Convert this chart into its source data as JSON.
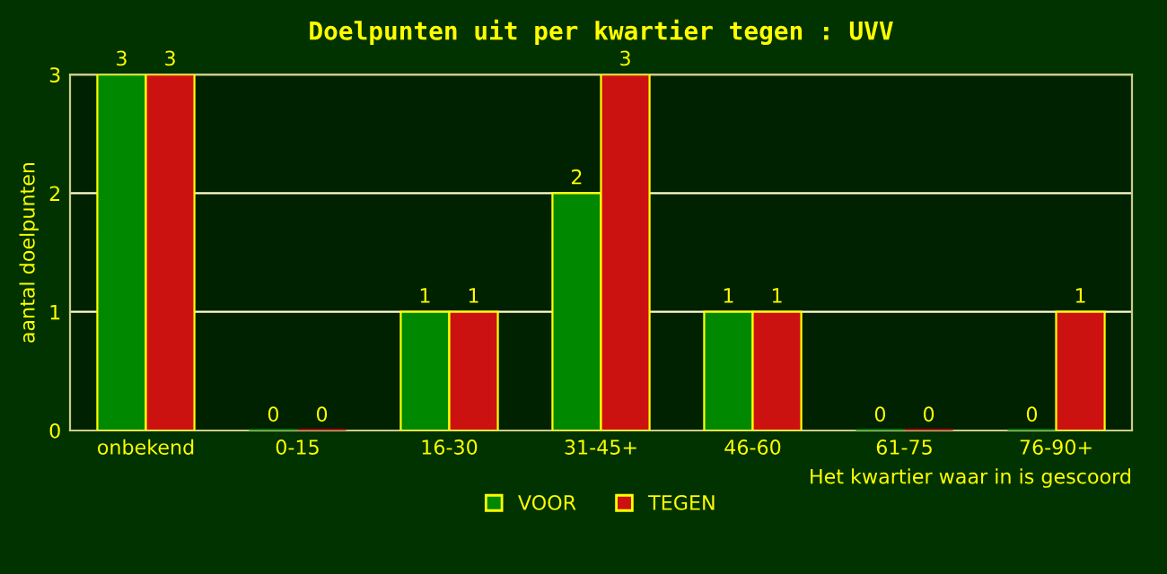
{
  "chart_data": {
    "type": "bar",
    "title": "Doelpunten uit per kwartier tegen : UVV",
    "xlabel": "Het kwartier waar in is gescoord",
    "ylabel": "aantal doelpunten",
    "categories": [
      "onbekend",
      "0-15",
      "16-30",
      "31-45+",
      "46-60",
      "61-75",
      "76-90+"
    ],
    "series": [
      {
        "name": "VOOR",
        "color": "#008800",
        "values": [
          3,
          0,
          1,
          2,
          1,
          0,
          0
        ]
      },
      {
        "name": "TEGEN",
        "color": "#cc1111",
        "values": [
          3,
          0,
          1,
          3,
          1,
          0,
          1
        ]
      }
    ],
    "ylim": [
      0,
      3
    ],
    "yticks": [
      0,
      1,
      2,
      3
    ],
    "grid": "y",
    "legend": "bottom",
    "data_labels": true
  }
}
